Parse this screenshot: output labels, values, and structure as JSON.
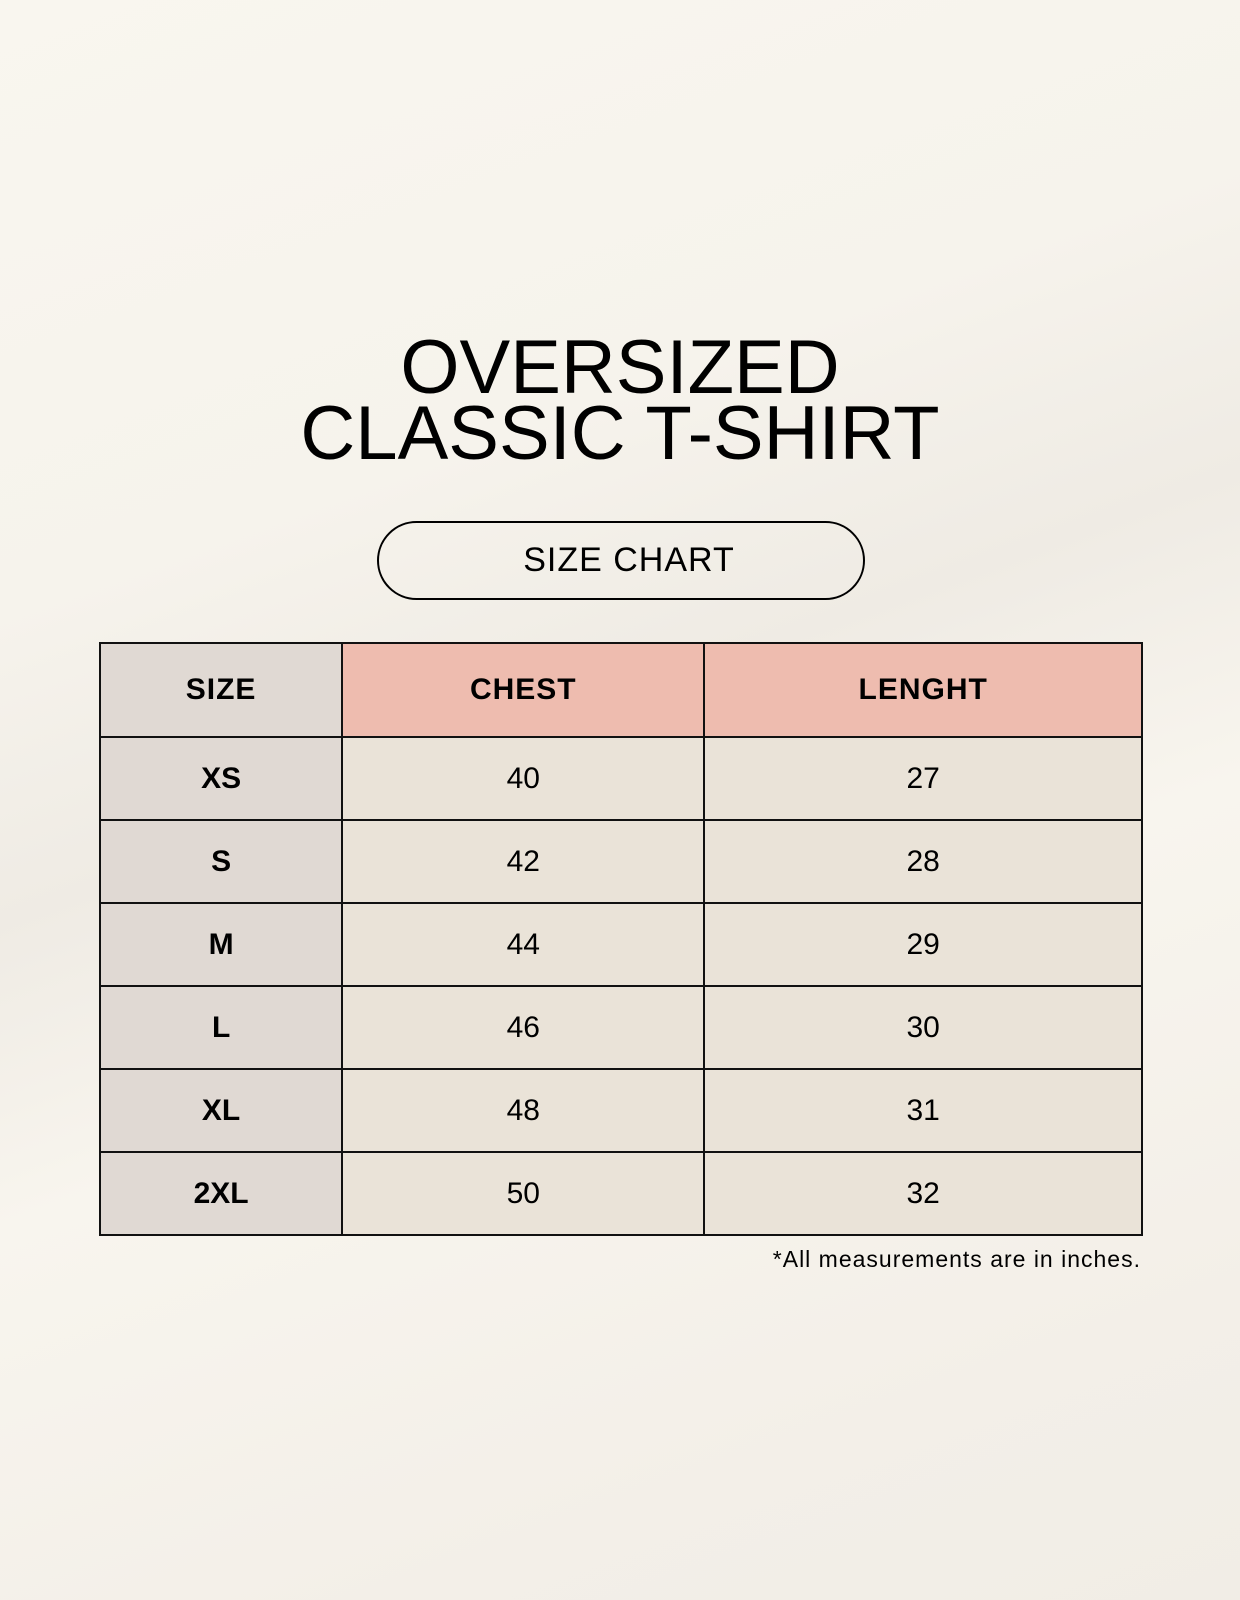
{
  "title": {
    "line1": "OVERSIZED",
    "line2": "CLASSIC T-SHIRT"
  },
  "badge": "SIZE CHART",
  "table": {
    "headers": [
      "SIZE",
      "CHEST",
      "LENGHT"
    ],
    "rows": [
      [
        "XS",
        "40",
        "27"
      ],
      [
        "S",
        "42",
        "28"
      ],
      [
        "M",
        "44",
        "29"
      ],
      [
        "L",
        "46",
        "30"
      ],
      [
        "XL",
        "48",
        "31"
      ],
      [
        "2XL",
        "50",
        "32"
      ]
    ]
  },
  "note": "*All measurements are in inches.",
  "colors": {
    "size_column": "#e0d9d3",
    "header_accent": "#eebcaf",
    "cell": "#eae3d8"
  }
}
